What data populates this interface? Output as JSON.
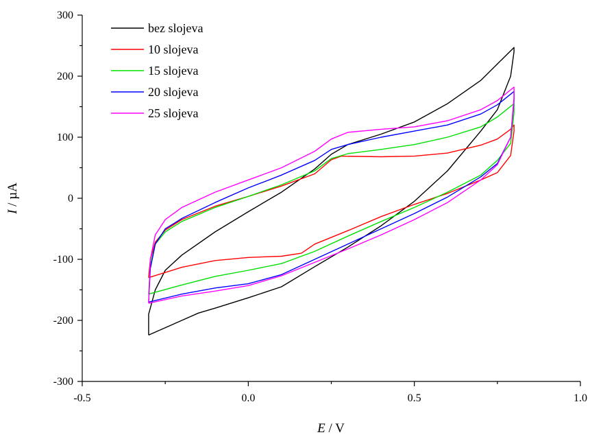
{
  "chart_data": {
    "type": "line",
    "title": "",
    "xlabel_var": "E",
    "xlabel_unit": " / V",
    "ylabel_var": "I",
    "ylabel_unit": " / µA",
    "xlim": [
      -0.5,
      1.0
    ],
    "ylim": [
      -300,
      300
    ],
    "xticks": [
      -0.5,
      0.0,
      0.5,
      1.0
    ],
    "xtick_labels": [
      "-0.5",
      "0.0",
      "0.5",
      "1.0"
    ],
    "yticks": [
      -300,
      -200,
      -100,
      0,
      100,
      200,
      300
    ],
    "ytick_labels": [
      "-300",
      "-200",
      "-100",
      "0",
      "100",
      "200",
      "300"
    ],
    "grid": false,
    "legend_position": "top-left",
    "series": [
      {
        "name": "bez slojeva",
        "color": "#000000",
        "points": [
          [
            -0.3,
            -224
          ],
          [
            -0.3,
            -190
          ],
          [
            -0.28,
            -150
          ],
          [
            -0.25,
            -118
          ],
          [
            -0.2,
            -93
          ],
          [
            -0.1,
            -55
          ],
          [
            0.0,
            -22
          ],
          [
            0.1,
            10
          ],
          [
            0.2,
            48
          ],
          [
            0.25,
            72
          ],
          [
            0.3,
            88
          ],
          [
            0.4,
            105
          ],
          [
            0.5,
            125
          ],
          [
            0.6,
            155
          ],
          [
            0.7,
            193
          ],
          [
            0.75,
            220
          ],
          [
            0.8,
            247
          ],
          [
            0.8,
            240
          ],
          [
            0.79,
            200
          ],
          [
            0.75,
            145
          ],
          [
            0.7,
            110
          ],
          [
            0.6,
            45
          ],
          [
            0.5,
            -5
          ],
          [
            0.4,
            -45
          ],
          [
            0.3,
            -80
          ],
          [
            0.2,
            -112
          ],
          [
            0.1,
            -145
          ],
          [
            0.0,
            -163
          ],
          [
            -0.1,
            -180
          ],
          [
            -0.15,
            -188
          ],
          [
            -0.2,
            -200
          ],
          [
            -0.3,
            -224
          ]
        ]
      },
      {
        "name": "10 slojeva",
        "color": "#ff0000",
        "points": [
          [
            -0.3,
            -130
          ],
          [
            -0.295,
            -100
          ],
          [
            -0.28,
            -72
          ],
          [
            -0.25,
            -52
          ],
          [
            -0.2,
            -35
          ],
          [
            -0.1,
            -13
          ],
          [
            0.0,
            3
          ],
          [
            0.1,
            20
          ],
          [
            0.2,
            40
          ],
          [
            0.25,
            63
          ],
          [
            0.28,
            69
          ],
          [
            0.4,
            68
          ],
          [
            0.5,
            69
          ],
          [
            0.6,
            74
          ],
          [
            0.7,
            87
          ],
          [
            0.75,
            97
          ],
          [
            0.79,
            113
          ],
          [
            0.8,
            120
          ],
          [
            0.8,
            110
          ],
          [
            0.79,
            70
          ],
          [
            0.75,
            42
          ],
          [
            0.7,
            30
          ],
          [
            0.6,
            8
          ],
          [
            0.5,
            -10
          ],
          [
            0.4,
            -30
          ],
          [
            0.3,
            -53
          ],
          [
            0.2,
            -75
          ],
          [
            0.16,
            -90
          ],
          [
            0.1,
            -95
          ],
          [
            0.0,
            -97
          ],
          [
            -0.1,
            -102
          ],
          [
            -0.2,
            -113
          ],
          [
            -0.3,
            -130
          ]
        ]
      },
      {
        "name": "15 slojeva",
        "color": "#00e000",
        "points": [
          [
            -0.3,
            -157
          ],
          [
            -0.295,
            -110
          ],
          [
            -0.28,
            -75
          ],
          [
            -0.25,
            -55
          ],
          [
            -0.2,
            -38
          ],
          [
            -0.1,
            -15
          ],
          [
            0.0,
            3
          ],
          [
            0.1,
            22
          ],
          [
            0.2,
            45
          ],
          [
            0.25,
            65
          ],
          [
            0.3,
            73
          ],
          [
            0.4,
            80
          ],
          [
            0.5,
            88
          ],
          [
            0.6,
            100
          ],
          [
            0.7,
            117
          ],
          [
            0.75,
            133
          ],
          [
            0.8,
            155
          ],
          [
            0.8,
            140
          ],
          [
            0.79,
            90
          ],
          [
            0.75,
            62
          ],
          [
            0.7,
            38
          ],
          [
            0.6,
            10
          ],
          [
            0.5,
            -15
          ],
          [
            0.4,
            -38
          ],
          [
            0.3,
            -62
          ],
          [
            0.2,
            -87
          ],
          [
            0.1,
            -107
          ],
          [
            0.0,
            -118
          ],
          [
            -0.1,
            -128
          ],
          [
            -0.2,
            -142
          ],
          [
            -0.3,
            -157
          ]
        ]
      },
      {
        "name": "20 slojeva",
        "color": "#0000ff",
        "points": [
          [
            -0.3,
            -170
          ],
          [
            -0.295,
            -115
          ],
          [
            -0.28,
            -75
          ],
          [
            -0.25,
            -50
          ],
          [
            -0.2,
            -33
          ],
          [
            -0.1,
            -7
          ],
          [
            0.0,
            17
          ],
          [
            0.1,
            38
          ],
          [
            0.2,
            62
          ],
          [
            0.25,
            80
          ],
          [
            0.3,
            88
          ],
          [
            0.4,
            100
          ],
          [
            0.5,
            110
          ],
          [
            0.6,
            120
          ],
          [
            0.7,
            138
          ],
          [
            0.75,
            153
          ],
          [
            0.8,
            175
          ],
          [
            0.8,
            160
          ],
          [
            0.79,
            100
          ],
          [
            0.75,
            57
          ],
          [
            0.7,
            35
          ],
          [
            0.6,
            2
          ],
          [
            0.5,
            -25
          ],
          [
            0.4,
            -50
          ],
          [
            0.3,
            -75
          ],
          [
            0.2,
            -100
          ],
          [
            0.1,
            -125
          ],
          [
            0.0,
            -140
          ],
          [
            -0.1,
            -147
          ],
          [
            -0.2,
            -157
          ],
          [
            -0.3,
            -170
          ]
        ]
      },
      {
        "name": "25 slojeva",
        "color": "#ff00ff",
        "points": [
          [
            -0.3,
            -172
          ],
          [
            -0.295,
            -100
          ],
          [
            -0.28,
            -60
          ],
          [
            -0.25,
            -35
          ],
          [
            -0.2,
            -15
          ],
          [
            -0.1,
            10
          ],
          [
            0.0,
            30
          ],
          [
            0.1,
            50
          ],
          [
            0.2,
            77
          ],
          [
            0.25,
            97
          ],
          [
            0.3,
            108
          ],
          [
            0.4,
            113
          ],
          [
            0.5,
            117
          ],
          [
            0.6,
            127
          ],
          [
            0.7,
            145
          ],
          [
            0.75,
            160
          ],
          [
            0.8,
            182
          ],
          [
            0.8,
            165
          ],
          [
            0.79,
            100
          ],
          [
            0.75,
            55
          ],
          [
            0.7,
            30
          ],
          [
            0.6,
            -7
          ],
          [
            0.5,
            -35
          ],
          [
            0.4,
            -60
          ],
          [
            0.3,
            -83
          ],
          [
            0.2,
            -105
          ],
          [
            0.1,
            -127
          ],
          [
            0.0,
            -143
          ],
          [
            -0.1,
            -152
          ],
          [
            -0.2,
            -160
          ],
          [
            -0.3,
            -172
          ]
        ]
      }
    ]
  }
}
